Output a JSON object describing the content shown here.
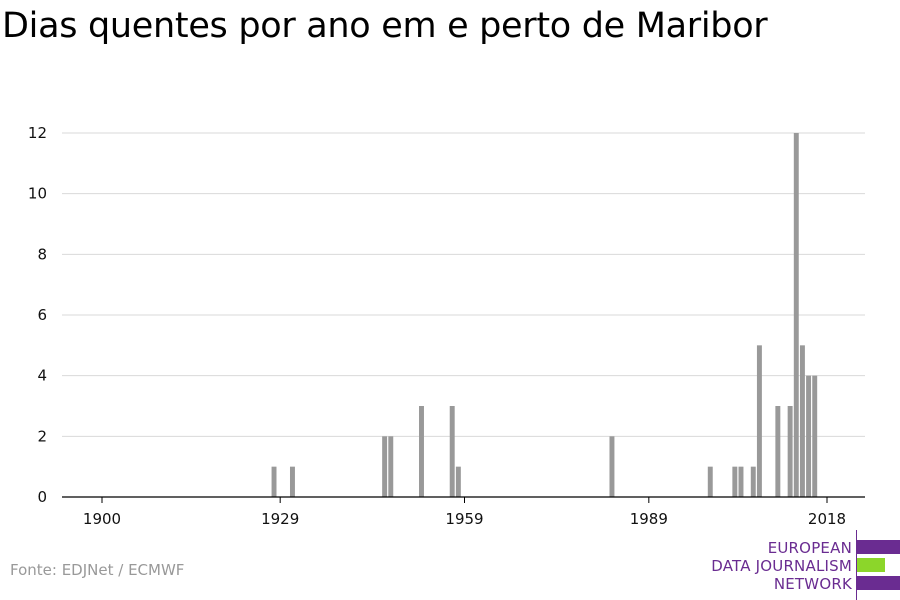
{
  "title": "Dias quentes por ano em e perto de Maribor",
  "source": "Fonte: EDJNet / ECMWF",
  "logo": {
    "lines": [
      "EUROPEAN",
      "DATA JOURNALISM",
      "NETWORK"
    ],
    "colors": {
      "purple": "#6a2c91",
      "green": "#8cd62a"
    }
  },
  "colors": {
    "bar": "#999999",
    "grid": "#d9d9d9",
    "axis": "#000000",
    "text": "#111111"
  },
  "chart_data": {
    "type": "bar",
    "title": "Dias quentes por ano em e perto de Maribor",
    "xlabel": "",
    "ylabel": "",
    "xlim": [
      1900,
      2018
    ],
    "ylim": [
      0,
      12
    ],
    "yticks": [
      0,
      2,
      4,
      6,
      8,
      10,
      12
    ],
    "xticks": [
      1900,
      1929,
      1959,
      1989,
      2018
    ],
    "grid": true,
    "x": [
      1928,
      1931,
      1946,
      1947,
      1952,
      1957,
      1958,
      1983,
      1999,
      2003,
      2004,
      2006,
      2007,
      2010,
      2012,
      2013,
      2014,
      2015,
      2016
    ],
    "values": [
      1,
      1,
      2,
      2,
      3,
      3,
      1,
      2,
      1,
      1,
      1,
      1,
      5,
      3,
      3,
      12,
      5,
      4,
      4
    ]
  }
}
